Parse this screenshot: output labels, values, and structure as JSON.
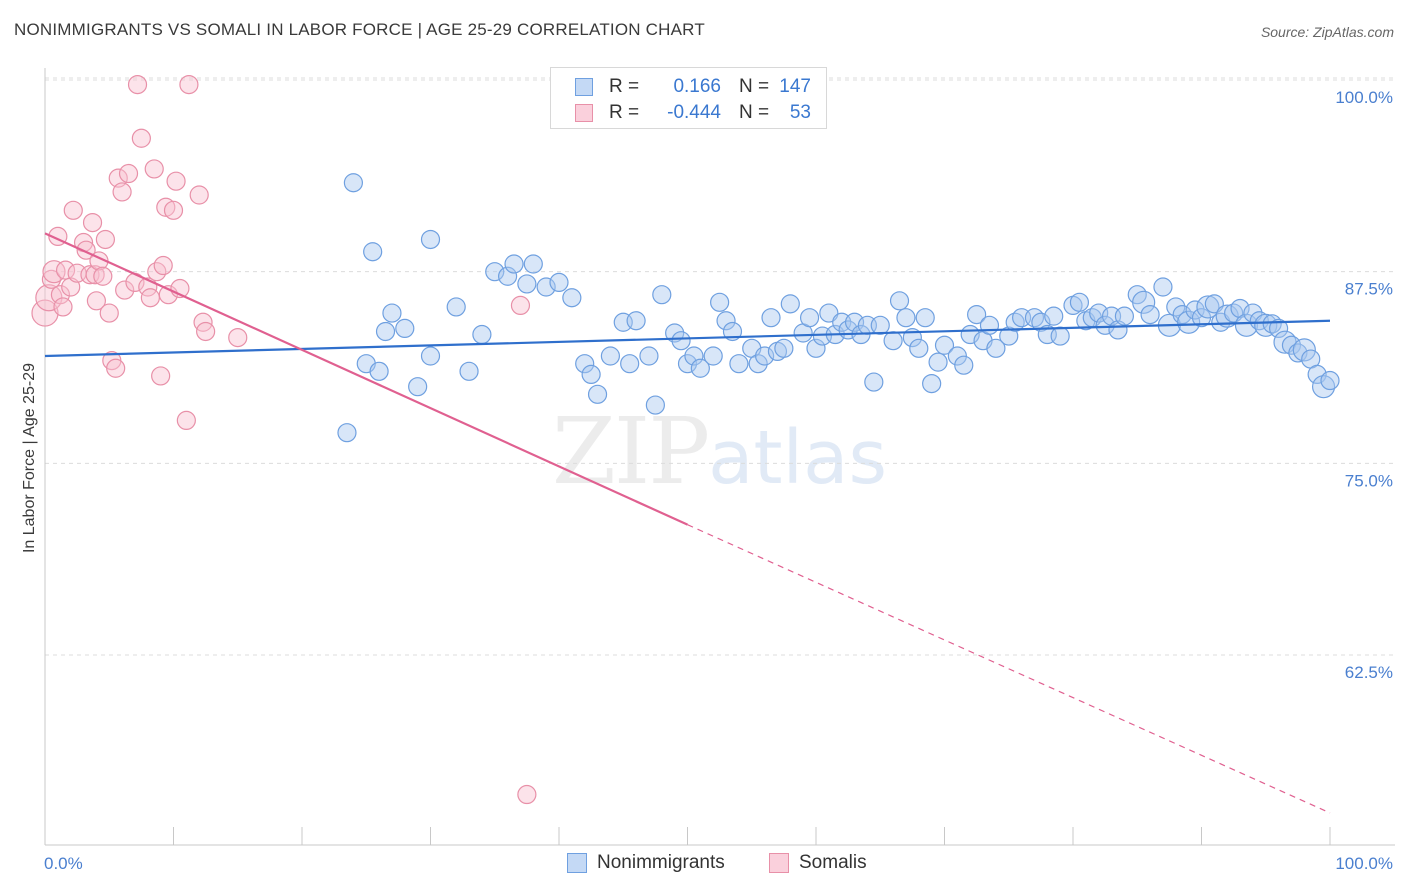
{
  "title": "NONIMMIGRANTS VS SOMALI IN LABOR FORCE | AGE 25-29 CORRELATION CHART",
  "source": "Source: ZipAtlas.com",
  "watermark": {
    "zip": "ZIP",
    "atlas": "atlas"
  },
  "legend": {
    "rows": [
      {
        "r_label": "R =",
        "r_value": "0.166",
        "n_label": "N =",
        "n_value": "147",
        "color": "#a8c8f0",
        "border": "#6fa0e0"
      },
      {
        "r_label": "R =",
        "r_value": "-0.444",
        "n_label": "N =",
        "n_value": "53",
        "color": "#f8c0d0",
        "border": "#e890a8"
      }
    ]
  },
  "bottom_legend": {
    "nonimmigrants": "Nonimmigrants",
    "somalis": "Somalis"
  },
  "chart_data": {
    "type": "scatter",
    "title": "NONIMMIGRANTS VS SOMALI IN LABOR FORCE | AGE 25-29 CORRELATION CHART",
    "ylabel": "In Labor Force | Age 25-29",
    "xlabel": "",
    "x_ticks": [
      "0.0%",
      "100.0%"
    ],
    "y_ticks": [
      "100.0%",
      "87.5%",
      "75.0%",
      "62.5%"
    ],
    "xlim": [
      0,
      100
    ],
    "ylim": [
      50,
      101
    ],
    "grid": true,
    "colors": {
      "nonimmigrants": "#6fa0e0",
      "somalis": "#e890a8",
      "blue_line": "#2f6fcc",
      "pink_line": "#e06090"
    },
    "series": [
      {
        "name": "Nonimmigrants",
        "trend": {
          "x0": 0,
          "y0": 82.0,
          "x1": 100,
          "y1": 84.3
        },
        "points": [
          [
            24,
            93.3
          ],
          [
            25.5,
            88.8
          ],
          [
            30,
            89.6
          ],
          [
            23.5,
            77
          ],
          [
            25,
            81.5
          ],
          [
            26,
            81
          ],
          [
            26.5,
            83.6
          ],
          [
            27,
            84.8
          ],
          [
            28,
            83.8
          ],
          [
            29,
            80
          ],
          [
            30,
            82
          ],
          [
            32,
            85.2
          ],
          [
            33,
            81
          ],
          [
            34,
            83.4
          ],
          [
            35,
            87.5
          ],
          [
            36,
            87.2
          ],
          [
            36.5,
            88
          ],
          [
            37.5,
            86.7
          ],
          [
            38,
            88
          ],
          [
            39,
            86.5
          ],
          [
            40,
            86.8
          ],
          [
            41,
            85.8
          ],
          [
            42,
            81.5
          ],
          [
            42.5,
            80.8
          ],
          [
            43,
            79.5
          ],
          [
            44,
            82
          ],
          [
            45,
            84.2
          ],
          [
            45.5,
            81.5
          ],
          [
            46,
            84.3
          ],
          [
            47,
            82
          ],
          [
            47.5,
            78.8
          ],
          [
            48,
            86
          ],
          [
            49,
            83.5
          ],
          [
            49.5,
            83
          ],
          [
            50,
            81.5
          ],
          [
            50.5,
            82
          ],
          [
            51,
            81.2
          ],
          [
            52,
            82
          ],
          [
            52.5,
            85.5
          ],
          [
            53,
            84.3
          ],
          [
            53.5,
            83.6
          ],
          [
            54,
            81.5
          ],
          [
            55,
            82.5
          ],
          [
            55.5,
            81.5
          ],
          [
            56,
            82
          ],
          [
            56.5,
            84.5
          ],
          [
            57,
            82.3
          ],
          [
            57.5,
            82.5
          ],
          [
            58,
            85.4
          ],
          [
            59,
            83.5
          ],
          [
            59.5,
            84.5
          ],
          [
            60,
            82.5
          ],
          [
            60.5,
            83.3
          ],
          [
            61,
            84.8
          ],
          [
            61.5,
            83.4
          ],
          [
            62,
            84.2
          ],
          [
            62.5,
            83.7
          ],
          [
            63,
            84.2
          ],
          [
            63.5,
            83.4
          ],
          [
            64,
            84
          ],
          [
            64.5,
            80.3
          ],
          [
            65,
            84
          ],
          [
            66,
            83
          ],
          [
            66.5,
            85.6
          ],
          [
            67,
            84.5
          ],
          [
            67.5,
            83.2
          ],
          [
            68,
            82.5
          ],
          [
            68.5,
            84.5
          ],
          [
            69,
            80.2
          ],
          [
            69.5,
            81.6
          ],
          [
            70,
            82.7
          ],
          [
            71,
            82
          ],
          [
            71.5,
            81.4
          ],
          [
            72,
            83.4
          ],
          [
            72.5,
            84.7
          ],
          [
            73,
            83
          ],
          [
            73.5,
            84
          ],
          [
            74,
            82.5
          ],
          [
            75,
            83.3
          ],
          [
            75.5,
            84.2
          ],
          [
            76,
            84.5
          ],
          [
            77,
            84.5
          ],
          [
            77.5,
            84.2
          ],
          [
            78,
            83.4
          ],
          [
            78.5,
            84.6
          ],
          [
            79,
            83.3
          ],
          [
            80,
            85.3
          ],
          [
            80.5,
            85.5
          ],
          [
            81,
            84.3
          ],
          [
            81.5,
            84.5
          ],
          [
            82,
            84.8
          ],
          [
            82.5,
            84
          ],
          [
            83,
            84.6
          ],
          [
            83.5,
            83.7
          ],
          [
            84,
            84.6
          ],
          [
            85,
            86
          ],
          [
            85.5,
            85.5
          ],
          [
            86,
            84.7
          ],
          [
            87,
            86.5
          ],
          [
            87.5,
            84
          ],
          [
            88,
            85.2
          ],
          [
            88.5,
            84.7
          ],
          [
            89,
            84.2
          ],
          [
            89.5,
            85
          ],
          [
            90,
            84.5
          ],
          [
            90.5,
            85.2
          ],
          [
            91,
            85.4
          ],
          [
            91.5,
            84.2
          ],
          [
            92,
            84.6
          ],
          [
            92.5,
            84.8
          ],
          [
            93,
            85.1
          ],
          [
            93.5,
            84
          ],
          [
            94,
            84.8
          ],
          [
            94.5,
            84.3
          ],
          [
            95,
            84
          ],
          [
            95.5,
            84.1
          ],
          [
            96,
            83.8
          ],
          [
            96.5,
            82.9
          ],
          [
            97,
            82.7
          ],
          [
            97.5,
            82.2
          ],
          [
            98,
            82.4
          ],
          [
            98.5,
            81.8
          ],
          [
            99,
            80.8
          ],
          [
            99.5,
            80
          ],
          [
            100,
            80.4
          ]
        ]
      },
      {
        "name": "Somalis",
        "trend": {
          "x0": 0,
          "y0": 90.0,
          "x1": 50,
          "y1": 71.0,
          "dash_to": {
            "x": 100,
            "y": 52.2
          }
        },
        "points": [
          [
            0,
            84.8
          ],
          [
            0.3,
            85.8
          ],
          [
            0.5,
            87
          ],
          [
            0.7,
            87.5
          ],
          [
            1,
            89.8
          ],
          [
            1.2,
            86
          ],
          [
            1.4,
            85.2
          ],
          [
            1.6,
            87.6
          ],
          [
            2,
            86.5
          ],
          [
            2.2,
            91.5
          ],
          [
            2.5,
            87.4
          ],
          [
            3,
            89.4
          ],
          [
            3.2,
            88.9
          ],
          [
            3.5,
            87.3
          ],
          [
            3.7,
            90.7
          ],
          [
            3.9,
            87.3
          ],
          [
            4,
            85.6
          ],
          [
            4.2,
            88.2
          ],
          [
            4.5,
            87.2
          ],
          [
            4.7,
            89.6
          ],
          [
            5,
            84.8
          ],
          [
            5.2,
            81.7
          ],
          [
            5.5,
            81.2
          ],
          [
            5.7,
            93.6
          ],
          [
            6,
            92.7
          ],
          [
            6.2,
            86.3
          ],
          [
            6.5,
            93.9
          ],
          [
            7,
            86.8
          ],
          [
            7.2,
            99.7
          ],
          [
            7.5,
            96.2
          ],
          [
            8,
            86.5
          ],
          [
            8.2,
            85.8
          ],
          [
            8.5,
            94.2
          ],
          [
            8.7,
            87.5
          ],
          [
            9,
            80.7
          ],
          [
            9.2,
            87.9
          ],
          [
            9.4,
            91.7
          ],
          [
            9.6,
            86
          ],
          [
            10,
            91.5
          ],
          [
            10.2,
            93.4
          ],
          [
            10.5,
            86.4
          ],
          [
            11,
            77.8
          ],
          [
            11.2,
            99.7
          ],
          [
            12,
            92.5
          ],
          [
            12.3,
            84.2
          ],
          [
            12.5,
            83.6
          ],
          [
            15,
            83.2
          ],
          [
            37,
            85.3
          ],
          [
            37.5,
            53.4
          ]
        ]
      }
    ]
  }
}
